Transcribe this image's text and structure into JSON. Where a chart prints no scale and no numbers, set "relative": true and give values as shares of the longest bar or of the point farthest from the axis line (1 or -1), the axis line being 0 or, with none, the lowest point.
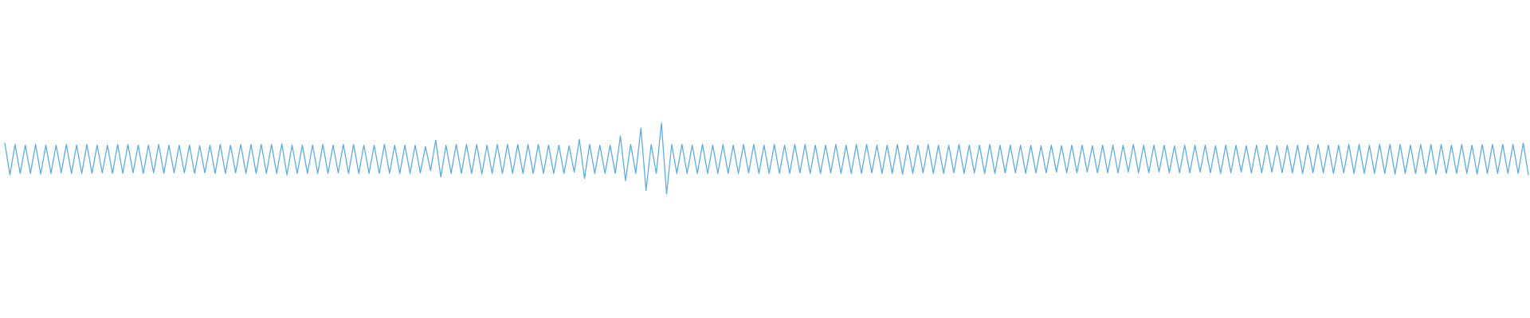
{
  "chart_data": {
    "type": "line",
    "relative": true,
    "categories": [
      null,
      null,
      null,
      null,
      null,
      null,
      null,
      null,
      null,
      null,
      null,
      null,
      null,
      null,
      null,
      null,
      null,
      null,
      null,
      null,
      null,
      null,
      null,
      null,
      null,
      null,
      null,
      null,
      null,
      null,
      null,
      null,
      null,
      null,
      null,
      null,
      null,
      null,
      null,
      null,
      null,
      null,
      null,
      null,
      null,
      null,
      null,
      null,
      null,
      null,
      null,
      null,
      null,
      null,
      null,
      null,
      null,
      null,
      null,
      null,
      null,
      null,
      null,
      null,
      null,
      null,
      null,
      null,
      null,
      null,
      null,
      null,
      null,
      null,
      null,
      null,
      null,
      null,
      null,
      null,
      null,
      null,
      null,
      null,
      null,
      null,
      null,
      null,
      null,
      null,
      null,
      null,
      null,
      null,
      null,
      null,
      null,
      null,
      null,
      null,
      null,
      null,
      null,
      null,
      null,
      null,
      null,
      null,
      null,
      null,
      null,
      null,
      null,
      null,
      null,
      null,
      null,
      null,
      null,
      null,
      null,
      null,
      null,
      null,
      null,
      null,
      null,
      null,
      null,
      null,
      null,
      null,
      null,
      null,
      null,
      null,
      null,
      null,
      null,
      null,
      null,
      null,
      null,
      null,
      null,
      null,
      null,
      null,
      null,
      null,
      null,
      null,
      null,
      null,
      null,
      null,
      null,
      null,
      null,
      null,
      null,
      null,
      null,
      null,
      null,
      null,
      null,
      null,
      null,
      null,
      null,
      null,
      null,
      null,
      null,
      null,
      null,
      null,
      null,
      null,
      null,
      null,
      null,
      null,
      null,
      null,
      null,
      null,
      null,
      null,
      null,
      null,
      null,
      null,
      null,
      null,
      null,
      null,
      null,
      null,
      null,
      null,
      null,
      null,
      null,
      null,
      null,
      null,
      null,
      null,
      null,
      null,
      null,
      null,
      null,
      null,
      null,
      null,
      null,
      null,
      null,
      null,
      null,
      null,
      null,
      null,
      null,
      null,
      null,
      null,
      null,
      null,
      null,
      null,
      null,
      null,
      null,
      null,
      null,
      null,
      null,
      null,
      null,
      null,
      null,
      null,
      null,
      null,
      null,
      null,
      null,
      null,
      null,
      null,
      null,
      null,
      null,
      null,
      null,
      null,
      null,
      null,
      null,
      null,
      null,
      null,
      null,
      null,
      null,
      null,
      null,
      null,
      null,
      null,
      null,
      null,
      null,
      null,
      null,
      null,
      null,
      null,
      null,
      null,
      null,
      null,
      null,
      null,
      null,
      null,
      null,
      null,
      null,
      null,
      null,
      null,
      null,
      null
    ],
    "series": [
      {
        "color": "#5dade2",
        "values": [
          0.72,
          0.27,
          0.7,
          0.29,
          0.69,
          0.29,
          0.7,
          0.28,
          0.69,
          0.29,
          0.69,
          0.3,
          0.7,
          0.29,
          0.69,
          0.29,
          0.7,
          0.29,
          0.69,
          0.3,
          0.69,
          0.29,
          0.7,
          0.29,
          0.7,
          0.3,
          0.69,
          0.29,
          0.69,
          0.3,
          0.7,
          0.29,
          0.69,
          0.3,
          0.69,
          0.3,
          0.69,
          0.29,
          0.68,
          0.3,
          0.69,
          0.29,
          0.7,
          0.29,
          0.69,
          0.3,
          0.7,
          0.29,
          0.7,
          0.29,
          0.7,
          0.29,
          0.7,
          0.29,
          0.71,
          0.27,
          0.69,
          0.29,
          0.69,
          0.29,
          0.69,
          0.29,
          0.7,
          0.29,
          0.69,
          0.3,
          0.7,
          0.29,
          0.7,
          0.29,
          0.69,
          0.29,
          0.69,
          0.29,
          0.7,
          0.29,
          0.69,
          0.29,
          0.69,
          0.29,
          0.69,
          0.3,
          0.67,
          0.33,
          0.76,
          0.24,
          0.69,
          0.29,
          0.7,
          0.29,
          0.7,
          0.29,
          0.7,
          0.28,
          0.69,
          0.29,
          0.7,
          0.29,
          0.7,
          0.29,
          0.7,
          0.29,
          0.7,
          0.29,
          0.7,
          0.29,
          0.69,
          0.29,
          0.69,
          0.29,
          0.68,
          0.31,
          0.77,
          0.22,
          0.7,
          0.29,
          0.69,
          0.29,
          0.69,
          0.29,
          0.82,
          0.19,
          0.7,
          0.29,
          0.93,
          0.05,
          0.7,
          0.29,
          1,
          0,
          0.7,
          0.29,
          0.7,
          0.29,
          0.69,
          0.29,
          0.7,
          0.29,
          0.69,
          0.29,
          0.7,
          0.29,
          0.69,
          0.29,
          0.7,
          0.3,
          0.7,
          0.29,
          0.69,
          0.29,
          0.7,
          0.29,
          0.69,
          0.29,
          0.7,
          0.3,
          0.7,
          0.29,
          0.69,
          0.29,
          0.69,
          0.3,
          0.7,
          0.29,
          0.69,
          0.29,
          0.7,
          0.29,
          0.7,
          0.3,
          0.69,
          0.29,
          0.69,
          0.29,
          0.7,
          0.28,
          0.69,
          0.29,
          0.69,
          0.3,
          0.7,
          0.29,
          0.69,
          0.29,
          0.69,
          0.3,
          0.7,
          0.29,
          0.69,
          0.3,
          0.69,
          0.29,
          0.7,
          0.29,
          0.69,
          0.3,
          0.69,
          0.3,
          0.69,
          0.29,
          0.69,
          0.3,
          0.68,
          0.3,
          0.69,
          0.31,
          0.68,
          0.3,
          0.69,
          0.3,
          0.69,
          0.31,
          0.68,
          0.3,
          0.69,
          0.3,
          0.69,
          0.3,
          0.69,
          0.31,
          0.7,
          0.3,
          0.69,
          0.3,
          0.69,
          0.31,
          0.69,
          0.3,
          0.68,
          0.3,
          0.69,
          0.3,
          0.69,
          0.31,
          0.69,
          0.3,
          0.68,
          0.29,
          0.69,
          0.3,
          0.69,
          0.31,
          0.68,
          0.3,
          0.69,
          0.3,
          0.69,
          0.31,
          0.68,
          0.3,
          0.69,
          0.3,
          0.69,
          0.29,
          0.69,
          0.3,
          0.7,
          0.3,
          0.69,
          0.29,
          0.69,
          0.3,
          0.7,
          0.29,
          0.7,
          0.29,
          0.69,
          0.29,
          0.7,
          0.29,
          0.7,
          0.28,
          0.7,
          0.29,
          0.69,
          0.29,
          0.7,
          0.29,
          0.7,
          0.28,
          0.7,
          0.29,
          0.69,
          0.29,
          0.7,
          0.29,
          0.69,
          0.28,
          0.7,
          0.29,
          0.7,
          0.29,
          0.7,
          0.29,
          0.7,
          0.29,
          0.72,
          0.27
        ]
      }
    ]
  }
}
